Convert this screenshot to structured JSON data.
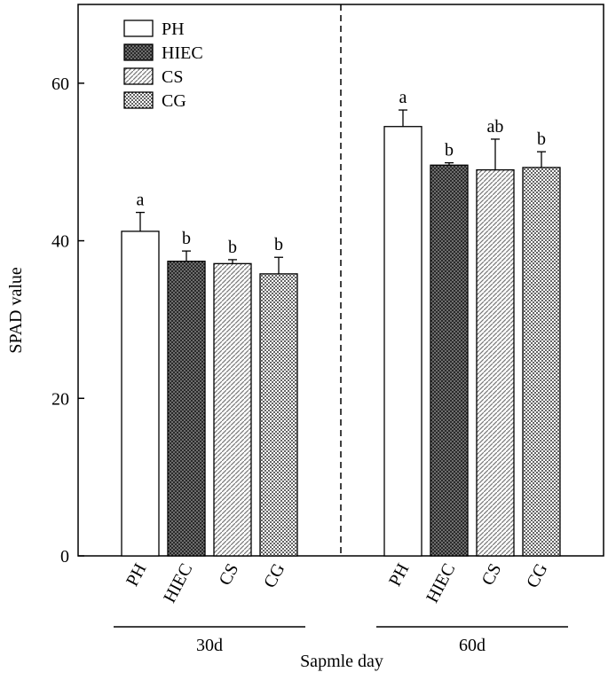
{
  "chart_data": {
    "type": "bar",
    "x_label": "Sapmle day",
    "y_label": "SPAD value",
    "categories": [
      "30d",
      "60d"
    ],
    "series": [
      {
        "name": "PH",
        "pattern": "none",
        "color": "#ffffff",
        "values": [
          41.2,
          54.5
        ],
        "errors": [
          2.4,
          2.1
        ],
        "value_labels": [
          "a",
          "a"
        ]
      },
      {
        "name": "HIEC",
        "pattern": "crosshatch",
        "color": "#555555",
        "values": [
          37.4,
          49.6
        ],
        "errors": [
          1.3,
          0.3
        ],
        "value_labels": [
          "b",
          "b"
        ]
      },
      {
        "name": "CS",
        "pattern": "diagonal",
        "color": "#888888",
        "values": [
          37.1,
          49.0
        ],
        "errors": [
          0.5,
          3.9
        ],
        "value_labels": [
          "b",
          "ab"
        ]
      },
      {
        "name": "CG",
        "pattern": "dots",
        "color": "#555555",
        "values": [
          35.8,
          49.3
        ],
        "errors": [
          2.1,
          2.0
        ],
        "value_labels": [
          "b",
          "b"
        ]
      }
    ],
    "ylim": [
      0,
      70
    ],
    "yticks": [
      0,
      20,
      40,
      60
    ],
    "group_divider": true
  }
}
